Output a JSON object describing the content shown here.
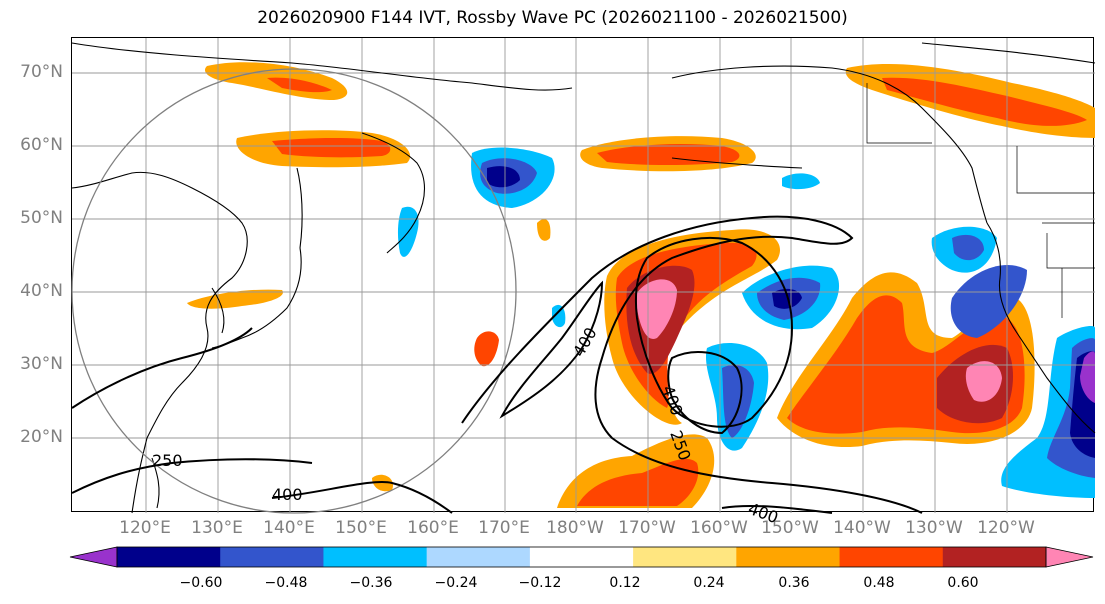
{
  "title": "2026020900 F144 IVT, Rossby Wave PC (2026021100 - 2026021500)",
  "lat_labels": [
    "70°N",
    "60°N",
    "50°N",
    "40°N",
    "30°N",
    "20°N"
  ],
  "lon_labels": [
    "120°E",
    "130°E",
    "140°E",
    "150°E",
    "160°E",
    "170°E",
    "180°W",
    "170°W",
    "160°W",
    "150°W",
    "140°W",
    "130°W",
    "120°W"
  ],
  "contour_labels": [
    "400",
    "250",
    "400",
    "250",
    "400",
    "400"
  ],
  "colorbar": {
    "colors": [
      "#9932CC",
      "#00008B",
      "#3355CC",
      "#00BFFF",
      "#ADD8FF",
      "#FFFFFF",
      "#FFE680",
      "#FFA500",
      "#FF4500",
      "#B22222",
      "#FF85B4"
    ],
    "tick_labels": [
      "−0.60",
      "−0.48",
      "−0.36",
      "−0.24",
      "−0.12",
      "0.12",
      "0.24",
      "0.36",
      "0.48",
      "0.60"
    ]
  }
}
